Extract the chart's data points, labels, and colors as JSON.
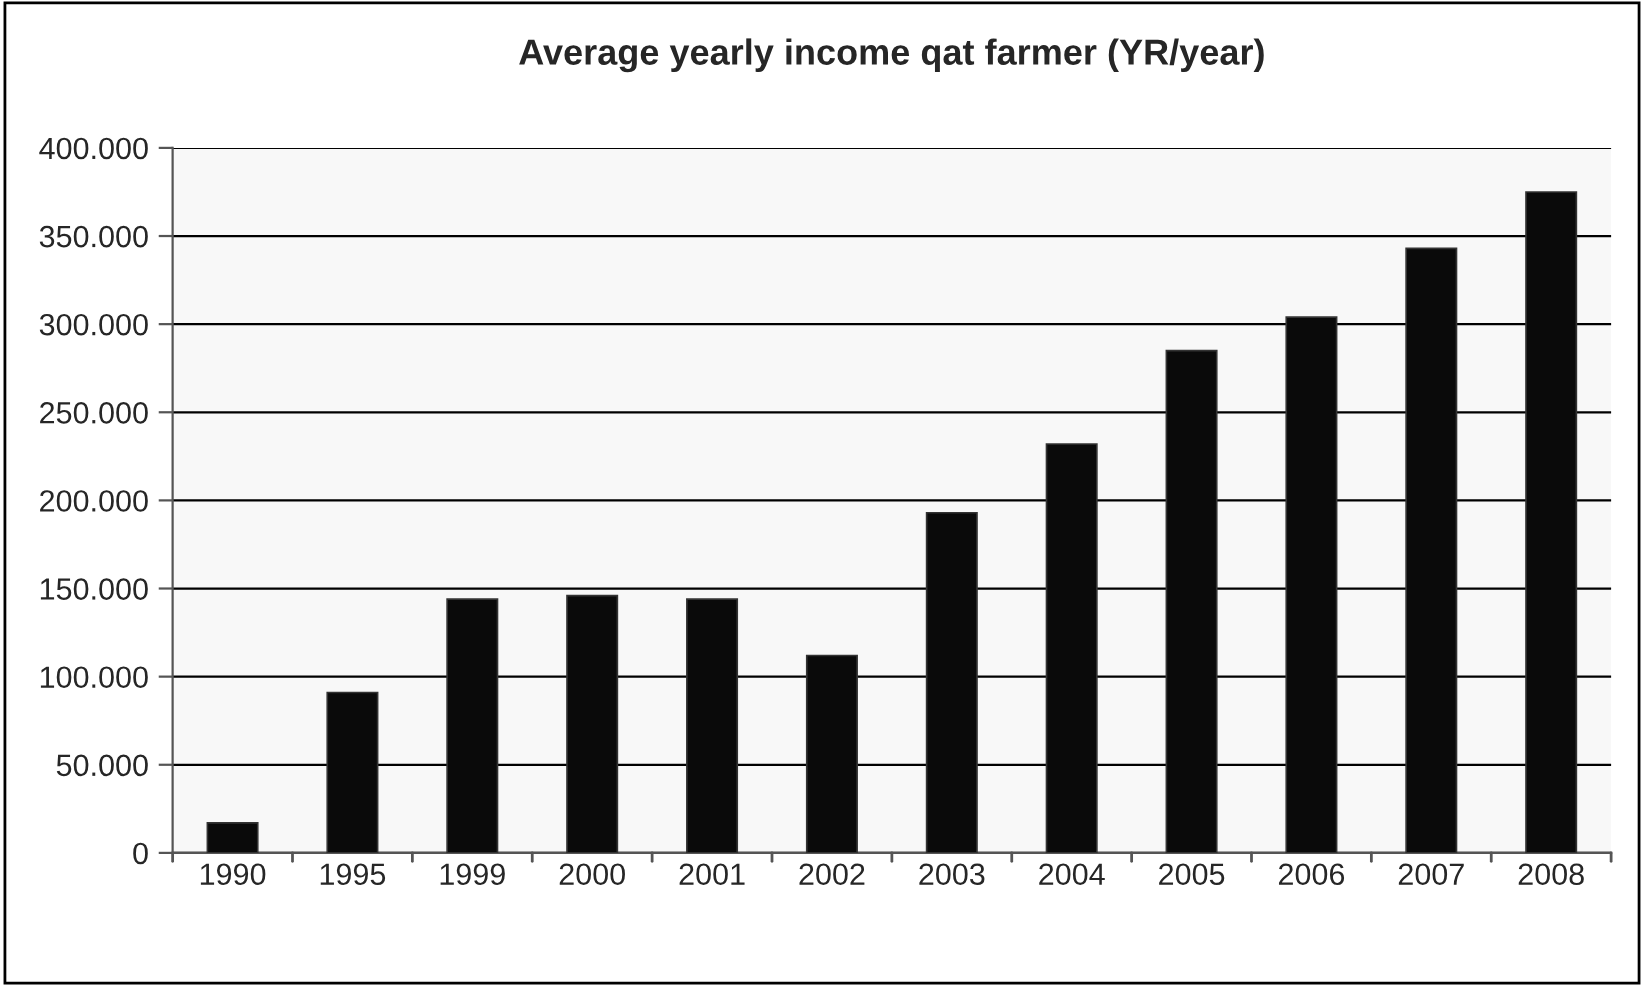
{
  "chart_data": {
    "type": "bar",
    "title": "Average yearly income qat farmer (YR/year)",
    "categories": [
      "1990",
      "1995",
      "1999",
      "2000",
      "2001",
      "2002",
      "2003",
      "2004",
      "2005",
      "2006",
      "2007",
      "2008"
    ],
    "values": [
      17000,
      91000,
      144000,
      146000,
      144000,
      112000,
      193000,
      232000,
      285000,
      304000,
      343000,
      375000
    ],
    "color": "#0a0a0a",
    "ylim": [
      0,
      400000
    ],
    "yticks": [
      {
        "value": 0,
        "label": "0"
      },
      {
        "value": 50000,
        "label": "50.000"
      },
      {
        "value": 100000,
        "label": "100.000"
      },
      {
        "value": 150000,
        "label": "150.000"
      },
      {
        "value": 200000,
        "label": "200.000"
      },
      {
        "value": 250000,
        "label": "250.000"
      },
      {
        "value": 300000,
        "label": "300.000"
      },
      {
        "value": 350000,
        "label": "350.000"
      },
      {
        "value": 400000,
        "label": "400.000"
      }
    ],
    "grid": "y"
  }
}
